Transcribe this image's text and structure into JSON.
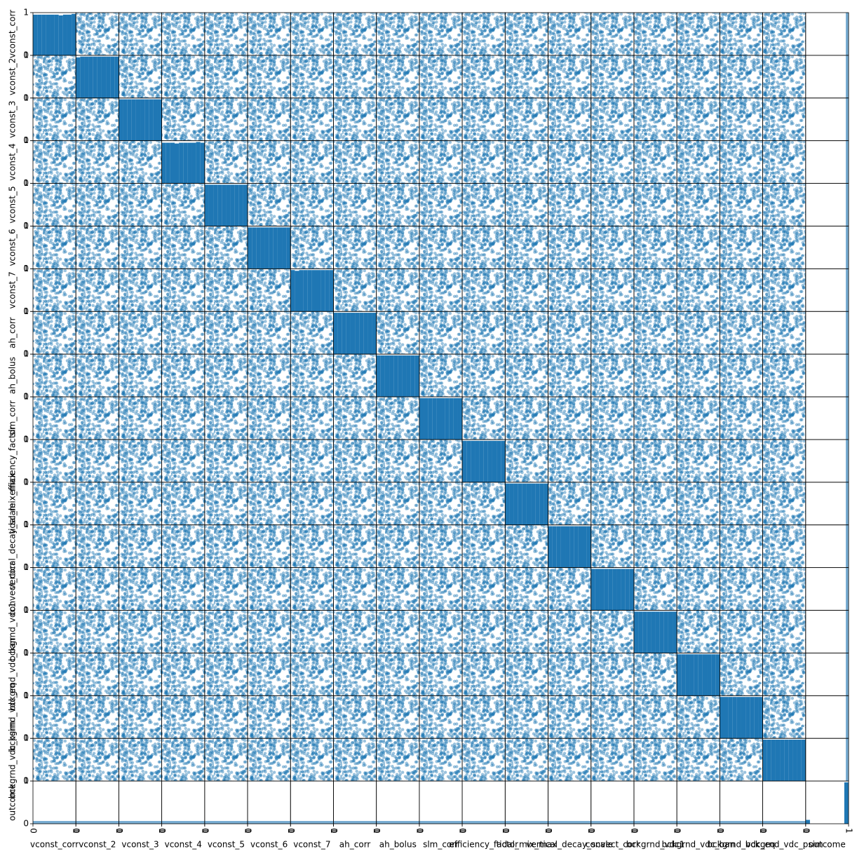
{
  "chart_data": {
    "type": "scatter_matrix",
    "variables": [
      "vconst_corr",
      "vconst_2",
      "vconst_3",
      "vconst_4",
      "vconst_5",
      "vconst_6",
      "vconst_7",
      "ah_corr",
      "ah_bolus",
      "slm_corr",
      "efficiency_factor",
      "tidal_mix_max",
      "vertical_decay_scale",
      "convect_corr",
      "bckgrnd_vdc1",
      "bckgrnd_vdc_ban",
      "bckgrnd_vdc_eq",
      "bckgrnd_vdc_psim",
      "outcome"
    ],
    "color": "#1f77b4",
    "xlim": [
      0,
      1
    ],
    "ylim": [
      0,
      1
    ],
    "xticks": [
      0,
      1
    ],
    "yticks": [
      0,
      1
    ],
    "hist_counts": [
      [
        54,
        54,
        54,
        54,
        54,
        54,
        53,
        54,
        54,
        55
      ],
      [
        53,
        54,
        54,
        54,
        54,
        54,
        54,
        54,
        54,
        54
      ],
      [
        54,
        54,
        54,
        54,
        54,
        54,
        54,
        54,
        54,
        54
      ],
      [
        54,
        54,
        54,
        53,
        54,
        54,
        54,
        54,
        55,
        54
      ],
      [
        54,
        54,
        54,
        54,
        54,
        54,
        54,
        54,
        54,
        54
      ],
      [
        54,
        54,
        54,
        54,
        54,
        54,
        54,
        54,
        54,
        54
      ],
      [
        54,
        53,
        54,
        54,
        54,
        54,
        54,
        54,
        54,
        54
      ],
      [
        54,
        54,
        54,
        54,
        54,
        54,
        54,
        54,
        54,
        54
      ],
      [
        54,
        54,
        54,
        54,
        54,
        54,
        54,
        54,
        54,
        54
      ],
      [
        54,
        54,
        54,
        54,
        54,
        54,
        54,
        54,
        54,
        54
      ],
      [
        54,
        54,
        54,
        54,
        54,
        54,
        54,
        54,
        54,
        54
      ],
      [
        54,
        54,
        54,
        54,
        54,
        54,
        54,
        54,
        54,
        54
      ],
      [
        54,
        54,
        54,
        54,
        54,
        54,
        54,
        54,
        54,
        54
      ],
      [
        54,
        54,
        54,
        54,
        54,
        54,
        54,
        54,
        54,
        54
      ],
      [
        54,
        54,
        54,
        54,
        54,
        54,
        54,
        54,
        54,
        54
      ],
      [
        54,
        54,
        54,
        54,
        54,
        54,
        54,
        54,
        54,
        54
      ],
      [
        54,
        54,
        54,
        54,
        54,
        54,
        54,
        54,
        54,
        54
      ],
      [
        54,
        54,
        54,
        54,
        54,
        54,
        54,
        54,
        54,
        54
      ],
      [
        46,
        0,
        0,
        0,
        0,
        0,
        0,
        0,
        0,
        494
      ]
    ]
  }
}
